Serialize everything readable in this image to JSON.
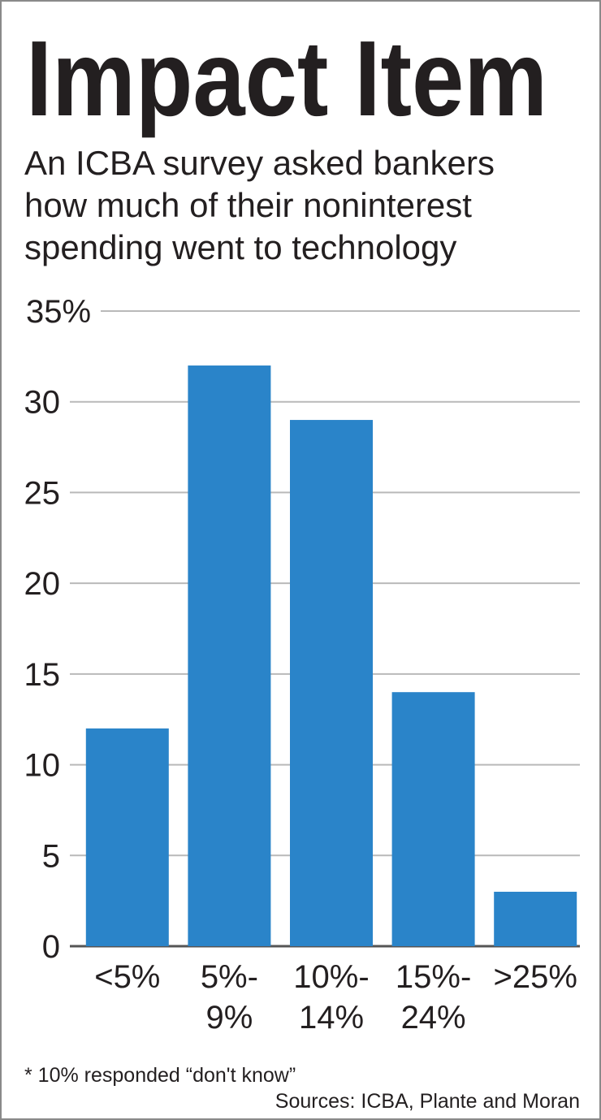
{
  "chart_data": {
    "type": "bar",
    "title": "Impact Item",
    "subtitle": [
      "An ICBA survey asked bankers",
      "how much of their noninterest",
      "spending went to technology"
    ],
    "categories": [
      "<5%",
      "5%- 9%",
      "10%- 14%",
      "15%- 24%",
      ">25%"
    ],
    "values": [
      12,
      32,
      29,
      14,
      3
    ],
    "color": "#2a84c9",
    "ylim": [
      0,
      35
    ],
    "yticks": [
      0,
      5,
      10,
      15,
      20,
      25,
      30,
      {
        "value": 35,
        "label": "35%"
      }
    ],
    "grid": true,
    "note": "* 10% responded “don't know”",
    "source": "Sources: ICBA, Plante and Moran"
  }
}
